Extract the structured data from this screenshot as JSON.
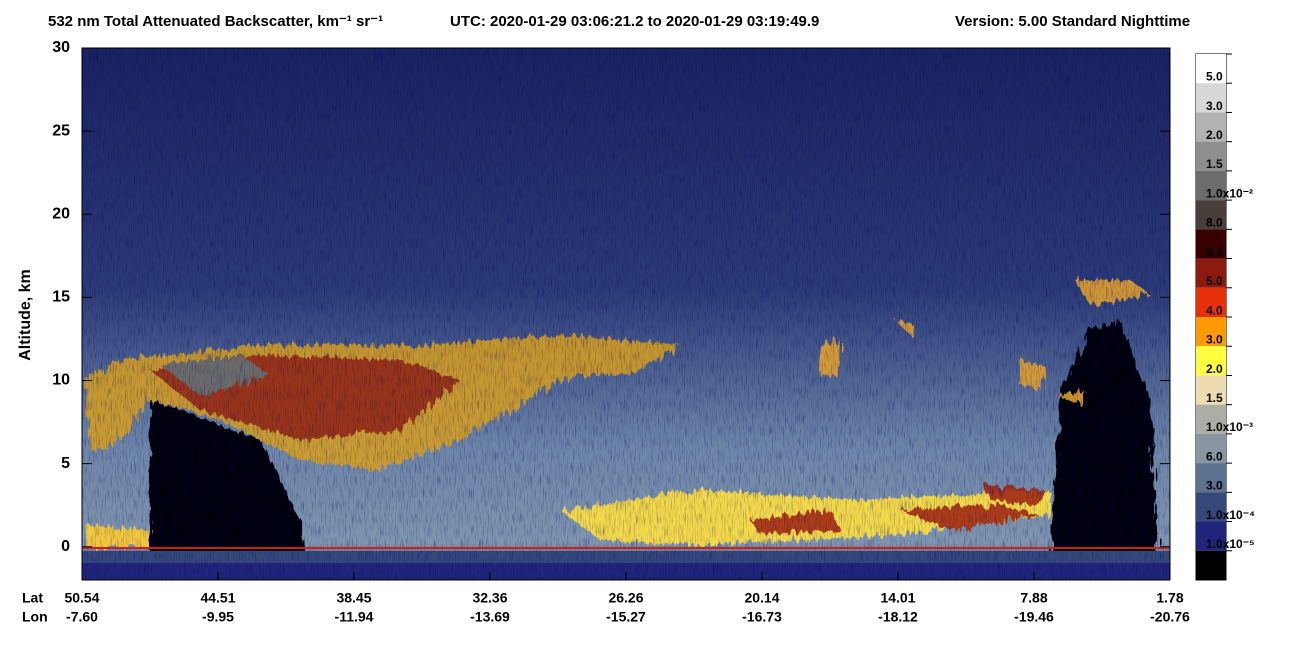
{
  "chart_data": {
    "type": "profile-image",
    "title": "532 nm Total Attenuated Backscatter, km⁻¹ sr⁻¹",
    "utc": "UTC:  2020-01-29 03:06:21.2  to  2020-01-29 03:19:49.9",
    "version": "Version: 5.00  Standard  Nighttime",
    "y_label": "Altitude, km",
    "ylim": [
      -2,
      30
    ],
    "yticks": [
      0,
      5,
      10,
      15,
      20,
      25,
      30
    ],
    "x_row_labels": [
      "Lat",
      "Lon"
    ],
    "lat": [
      "50.54",
      "44.51",
      "38.45",
      "32.36",
      "26.26",
      "20.14",
      "14.01",
      "7.88",
      "1.78"
    ],
    "lon": [
      "-7.60",
      "-9.95",
      "-11.94",
      "-13.69",
      "-15.27",
      "-16.73",
      "-18.12",
      "-19.46",
      "-20.76"
    ],
    "colorbar": {
      "colors": [
        "#ffffff",
        "#d8d8d8",
        "#b2b2b2",
        "#8e8e8e",
        "#6c6c6c",
        "#4a3e3a",
        "#380000",
        "#8c1a10",
        "#e8300a",
        "#ff9a00",
        "#ffff40",
        "#ecdcb0",
        "#acada4",
        "#8896a2",
        "#5c7090",
        "#34487c",
        "#20247a",
        "#000000"
      ],
      "labels": [
        "5.0",
        "3.0",
        "2.0",
        "1.5",
        "1.0x10⁻²",
        "8.0",
        "6.0",
        "5.0",
        "4.0",
        "3.0",
        "2.0",
        "1.5",
        "1.0x10⁻³",
        "6.0",
        "3.0",
        "1.0x10⁻⁴",
        "1.0x10⁻⁵"
      ]
    }
  }
}
